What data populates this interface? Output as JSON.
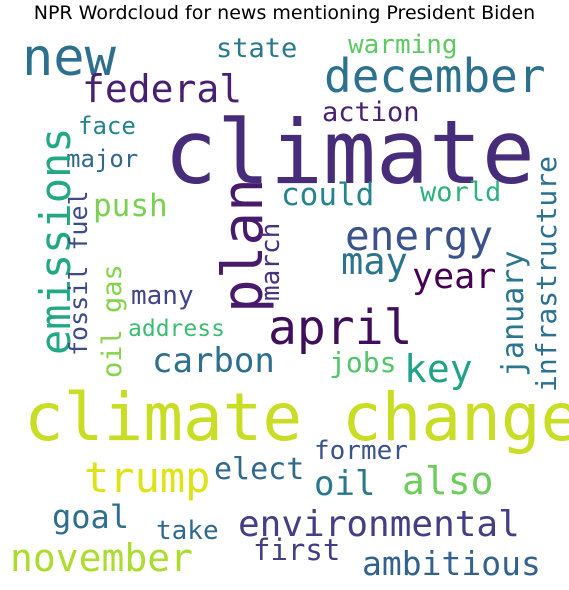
{
  "title": "NPR Wordcloud for news mentioning President Biden",
  "words": [
    {
      "text": "climate",
      "color": "#472c7a"
    },
    {
      "text": "climate change",
      "color": "#c8dd24"
    },
    {
      "text": "new",
      "color": "#2d6f8e"
    },
    {
      "text": "december",
      "color": "#2c718e"
    },
    {
      "text": "federal",
      "color": "#482071"
    },
    {
      "text": "state",
      "color": "#2a788e"
    },
    {
      "text": "warming",
      "color": "#5ec962"
    },
    {
      "text": "action",
      "color": "#482173"
    },
    {
      "text": "face",
      "color": "#25838e"
    },
    {
      "text": "major",
      "color": "#31688e"
    },
    {
      "text": "emissions",
      "color": "#22a884"
    },
    {
      "text": "plan",
      "color": "#481a6c"
    },
    {
      "text": "infrastructure",
      "color": "#2c728e"
    },
    {
      "text": "could",
      "color": "#25858e"
    },
    {
      "text": "world",
      "color": "#2db27d"
    },
    {
      "text": "push",
      "color": "#7ad151"
    },
    {
      "text": "energy",
      "color": "#3b528b"
    },
    {
      "text": "fossil fuel",
      "color": "#3e4a89"
    },
    {
      "text": "oil gas",
      "color": "#84d44b"
    },
    {
      "text": "march",
      "color": "#46337e"
    },
    {
      "text": "may",
      "color": "#2c738e"
    },
    {
      "text": "year",
      "color": "#440154"
    },
    {
      "text": "january",
      "color": "#2a768e"
    },
    {
      "text": "many",
      "color": "#414487"
    },
    {
      "text": "april",
      "color": "#3f0f5c"
    },
    {
      "text": "address",
      "color": "#3dbc74"
    },
    {
      "text": "carbon",
      "color": "#2d6f8e"
    },
    {
      "text": "jobs",
      "color": "#51c56a"
    },
    {
      "text": "key",
      "color": "#20a386"
    },
    {
      "text": "former",
      "color": "#3a538b"
    },
    {
      "text": "trump",
      "color": "#dde318"
    },
    {
      "text": "elect",
      "color": "#31688e"
    },
    {
      "text": "oil",
      "color": "#2a778e"
    },
    {
      "text": "also",
      "color": "#6ccd5a"
    },
    {
      "text": "goal",
      "color": "#2e6e8e"
    },
    {
      "text": "environmental",
      "color": "#433e85"
    },
    {
      "text": "take",
      "color": "#30698e"
    },
    {
      "text": "first",
      "color": "#433d84"
    },
    {
      "text": "november",
      "color": "#addc30"
    },
    {
      "text": "ambitious",
      "color": "#33638d"
    }
  ]
}
